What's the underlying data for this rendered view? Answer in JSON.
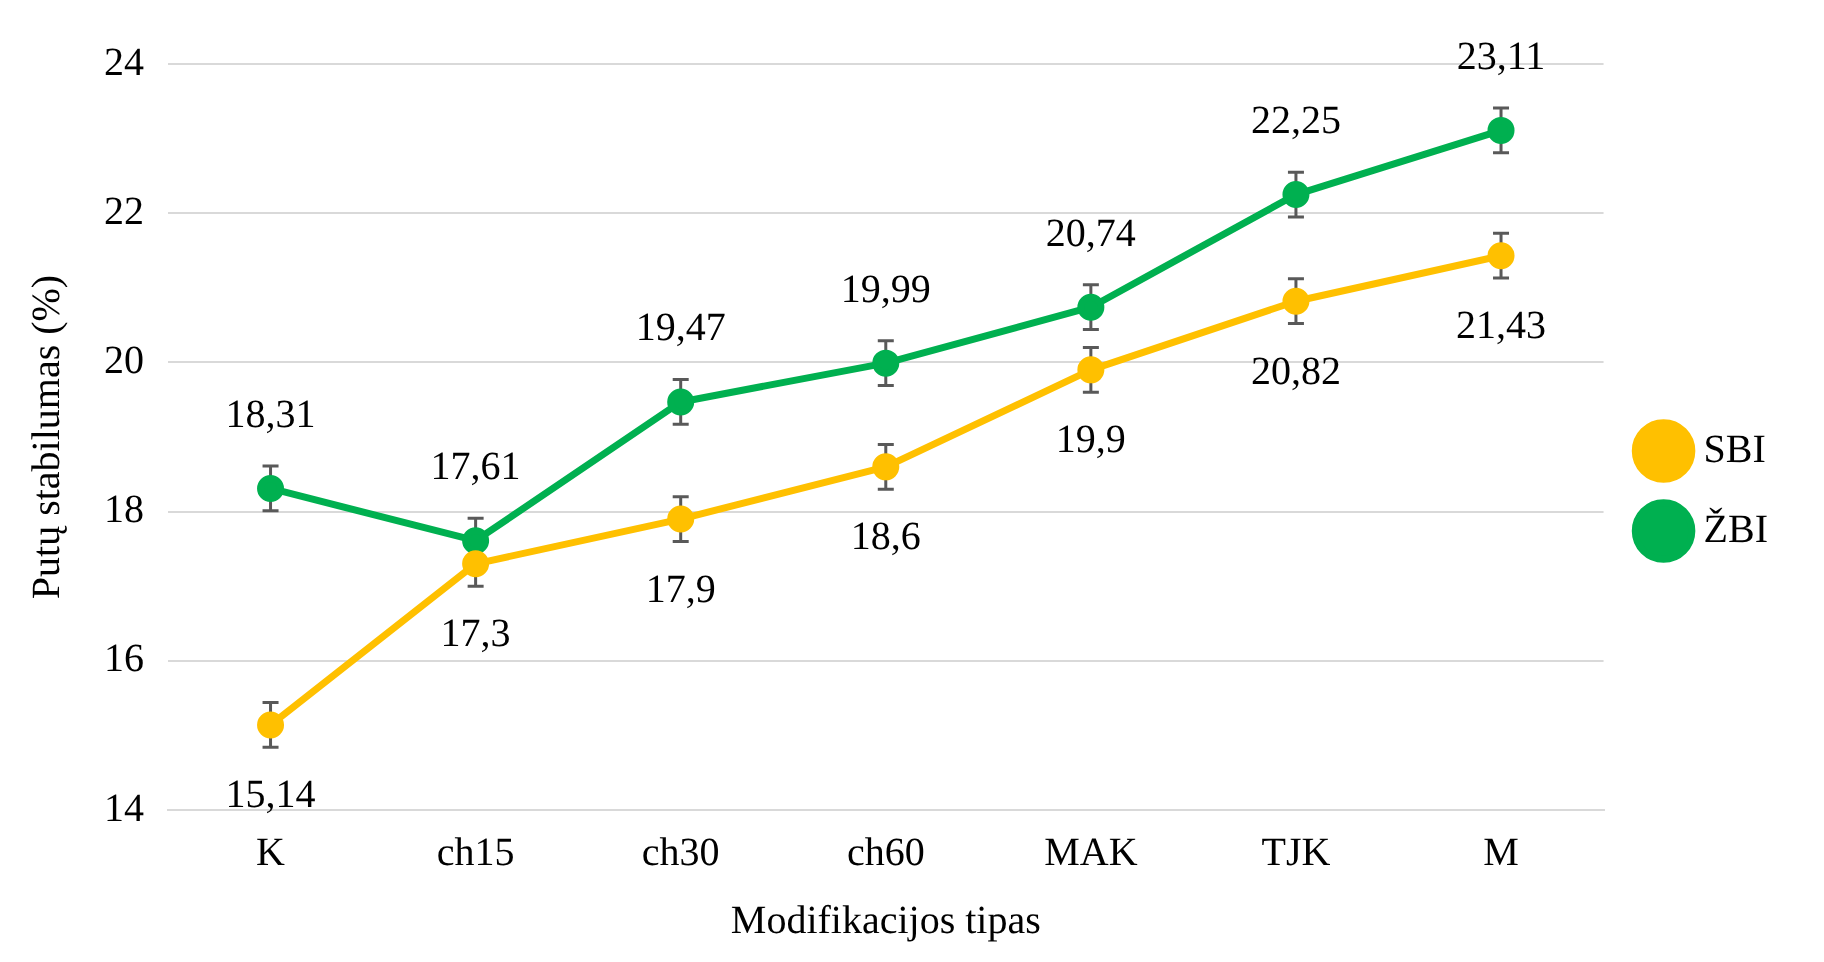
{
  "chart_data": {
    "type": "line",
    "xlabel": "Modifikacijos tipas",
    "ylabel": "Putų stabilumas (%)",
    "categories": [
      "K",
      "ch15",
      "ch30",
      "ch60",
      "MAK",
      "TJK",
      "M"
    ],
    "series": [
      {
        "name": "SBI",
        "color": "#ffc000",
        "values": [
          15.14,
          17.3,
          17.9,
          18.6,
          19.9,
          20.82,
          21.43
        ],
        "value_labels": [
          "15,14",
          "17,3",
          "17,9",
          "18,6",
          "19,9",
          "20,82",
          "21,43"
        ],
        "errors": [
          0.3,
          0.3,
          0.3,
          0.3,
          0.3,
          0.3,
          0.3
        ]
      },
      {
        "name": "ŽBI",
        "color": "#00b050",
        "values": [
          18.31,
          17.61,
          19.47,
          19.99,
          20.74,
          22.25,
          23.11
        ],
        "value_labels": [
          "18,31",
          "17,61",
          "19,47",
          "19,99",
          "20,74",
          "22,25",
          "23,11"
        ],
        "errors": [
          0.3,
          0.3,
          0.3,
          0.3,
          0.3,
          0.3,
          0.3
        ]
      }
    ],
    "ylim": [
      14,
      24
    ],
    "yticks": [
      14,
      16,
      18,
      20,
      22,
      24
    ],
    "grid": "y",
    "legend": "right",
    "marker": "circle",
    "line_style": "solid"
  }
}
